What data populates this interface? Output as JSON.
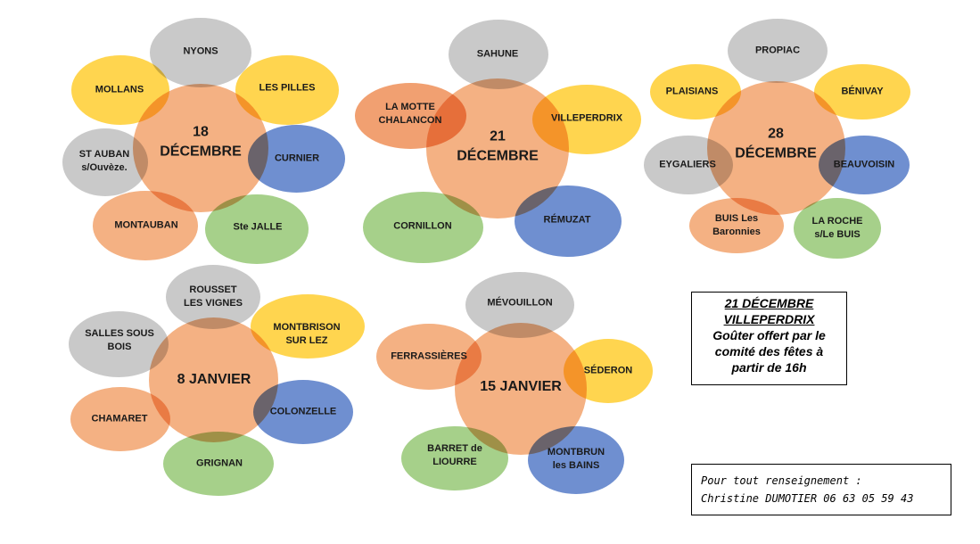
{
  "clusters": [
    {
      "center": {
        "line1": "18",
        "line2": "DÉCEMBRE"
      },
      "villages": [
        "NYONS",
        "LES PILLES",
        "CURNIER",
        "Ste JALLE",
        "MONTAUBAN",
        "ST AUBAN\ns/Ouvèze.",
        "MOLLANS"
      ],
      "colors": [
        "grey",
        "yellow",
        "blue",
        "green",
        "orange",
        "grey",
        "yellow"
      ]
    },
    {
      "center": {
        "line1": "21",
        "line2": "DÉCEMBRE"
      },
      "villages": [
        "SAHUNE",
        "VILLEPERDRIX",
        "RÉMUZAT",
        "CORNILLON",
        "LA MOTTE\nCHALANCON"
      ],
      "colors": [
        "grey",
        "yellow",
        "blue",
        "green",
        "orange"
      ]
    },
    {
      "center": {
        "line1": "28",
        "line2": "DÉCEMBRE"
      },
      "villages": [
        "PROPIAC",
        "BÉNIVAY",
        "BEAUVOISIN",
        "LA ROCHE\ns/Le BUIS",
        "BUIS Les\nBaronnies",
        "EYGALIERS",
        "PLAISIANS"
      ],
      "colors": [
        "grey",
        "yellow",
        "blue",
        "green",
        "orange",
        "grey",
        "yellow"
      ]
    },
    {
      "center": {
        "line1": "8 JANVIER",
        "line2": ""
      },
      "villages": [
        "ROUSSET\nLES VIGNES",
        "MONTBRISON\nSUR  LEZ",
        "COLONZELLE",
        "GRIGNAN",
        "CHAMARET",
        "SALLES SOUS\nBOIS"
      ],
      "colors": [
        "grey",
        "yellow",
        "blue",
        "green",
        "orange",
        "grey"
      ]
    },
    {
      "center": {
        "line1": "15 JANVIER",
        "line2": ""
      },
      "villages": [
        "MÉVOUILLON",
        "SÉDERON",
        "MONTBRUN\nles BAINS",
        "BARRET  de\nLIOURRE",
        "FERRASSIÈRES"
      ],
      "colors": [
        "grey",
        "yellow",
        "blue",
        "green",
        "orange"
      ]
    }
  ],
  "note": {
    "line1": "21 DÉCEMBRE",
    "line2": "VILLEPERDRIX",
    "line3": "Goûter offert par le",
    "line4": "comité des fêtes à",
    "line5": "partir de 16h"
  },
  "contact": {
    "line1": "Pour tout renseignement :",
    "line2": "Christine DUMOTIER 06 63 05 59 43"
  }
}
